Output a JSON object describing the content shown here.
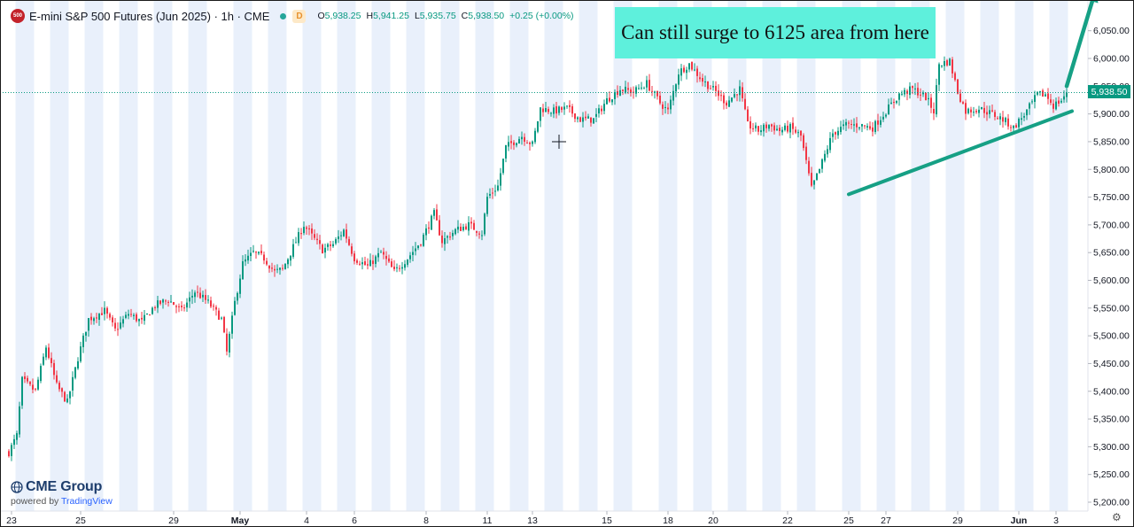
{
  "header": {
    "symbol_badge": "500",
    "title": "E-mini S&P 500 Futures (Jun 2025) · 1h · CME",
    "d_badge": "D",
    "open_label": "O",
    "open": "5,938.25",
    "high_label": "H",
    "high": "5,941.25",
    "low_label": "L",
    "low": "5,935.75",
    "close_label": "C",
    "close": "5,938.50",
    "change": "+0.25 (+0.00%)"
  },
  "annotation": {
    "text": "Can still surge to 6125 area from here"
  },
  "logo": {
    "main": "CME Group",
    "powered": "powered by",
    "brand": "TradingView"
  },
  "current_price_tag": "5,938.50",
  "colors": {
    "up": "#089981",
    "down": "#f23645",
    "trendline": "#16a085",
    "banner": "#5ef0dc",
    "session_shade": "#e9f0fb"
  },
  "chart_data": {
    "type": "candlestick",
    "title": "E-mini S&P 500 Futures (Jun 2025) · 1h · CME",
    "interval": "1h",
    "y_axis": {
      "min": 5200,
      "max": 6050,
      "ticks": [
        "5,200.00",
        "5,250.00",
        "5,300.00",
        "5,350.00",
        "5,400.00",
        "5,450.00",
        "5,500.00",
        "5,550.00",
        "5,600.00",
        "5,650.00",
        "5,700.00",
        "5,750.00",
        "5,800.00",
        "5,850.00",
        "5,900.00",
        "5,950.00",
        "6,000.00",
        "6,050.00"
      ]
    },
    "x_axis": {
      "labels": [
        {
          "text": "23",
          "idx": 1
        },
        {
          "text": "25",
          "idx": 27
        },
        {
          "text": "29",
          "idx": 62
        },
        {
          "text": "May",
          "idx": 87
        },
        {
          "text": "4",
          "idx": 112
        },
        {
          "text": "6",
          "idx": 130
        },
        {
          "text": "8",
          "idx": 157
        },
        {
          "text": "11",
          "idx": 180
        },
        {
          "text": "13",
          "idx": 197
        },
        {
          "text": "15",
          "idx": 225
        },
        {
          "text": "18",
          "idx": 248
        },
        {
          "text": "20",
          "idx": 265
        },
        {
          "text": "22",
          "idx": 293
        },
        {
          "text": "25",
          "idx": 316
        },
        {
          "text": "27",
          "idx": 330
        },
        {
          "text": "29",
          "idx": 357
        },
        {
          "text": "Jun",
          "idx": 380
        },
        {
          "text": "3",
          "idx": 394
        }
      ]
    },
    "session_bands": [
      [
        3,
        10
      ],
      [
        16,
        23
      ],
      [
        29,
        36
      ],
      [
        42,
        49
      ],
      [
        55,
        62
      ],
      [
        68,
        75
      ],
      [
        85,
        92
      ],
      [
        98,
        105
      ],
      [
        111,
        118
      ],
      [
        124,
        131
      ],
      [
        137,
        144
      ],
      [
        150,
        157
      ],
      [
        163,
        170
      ],
      [
        176,
        183
      ],
      [
        189,
        196
      ],
      [
        202,
        209
      ],
      [
        215,
        222
      ],
      [
        228,
        235
      ],
      [
        245,
        252
      ],
      [
        258,
        265
      ],
      [
        271,
        278
      ],
      [
        284,
        291
      ],
      [
        297,
        304
      ],
      [
        314,
        321
      ],
      [
        327,
        334
      ],
      [
        340,
        347
      ],
      [
        353,
        360
      ],
      [
        366,
        373
      ],
      [
        379,
        386
      ],
      [
        392,
        399
      ]
    ],
    "close_anchors": [
      [
        0,
        5290
      ],
      [
        3,
        5320
      ],
      [
        5,
        5420
      ],
      [
        10,
        5400
      ],
      [
        14,
        5480
      ],
      [
        18,
        5410
      ],
      [
        22,
        5380
      ],
      [
        26,
        5460
      ],
      [
        30,
        5530
      ],
      [
        36,
        5545
      ],
      [
        40,
        5510
      ],
      [
        45,
        5540
      ],
      [
        50,
        5525
      ],
      [
        55,
        5555
      ],
      [
        60,
        5565
      ],
      [
        65,
        5545
      ],
      [
        70,
        5580
      ],
      [
        75,
        5560
      ],
      [
        80,
        5530
      ],
      [
        82,
        5470
      ],
      [
        85,
        5560
      ],
      [
        88,
        5630
      ],
      [
        92,
        5650
      ],
      [
        96,
        5640
      ],
      [
        100,
        5615
      ],
      [
        103,
        5620
      ],
      [
        107,
        5660
      ],
      [
        111,
        5700
      ],
      [
        114,
        5680
      ],
      [
        118,
        5655
      ],
      [
        122,
        5665
      ],
      [
        126,
        5690
      ],
      [
        130,
        5640
      ],
      [
        135,
        5625
      ],
      [
        140,
        5650
      ],
      [
        145,
        5615
      ],
      [
        150,
        5640
      ],
      [
        155,
        5670
      ],
      [
        160,
        5720
      ],
      [
        163,
        5670
      ],
      [
        168,
        5690
      ],
      [
        173,
        5700
      ],
      [
        178,
        5685
      ],
      [
        180,
        5750
      ],
      [
        184,
        5770
      ],
      [
        187,
        5840
      ],
      [
        193,
        5860
      ],
      [
        197,
        5845
      ],
      [
        200,
        5910
      ],
      [
        205,
        5905
      ],
      [
        210,
        5910
      ],
      [
        215,
        5890
      ],
      [
        220,
        5890
      ],
      [
        225,
        5925
      ],
      [
        230,
        5945
      ],
      [
        235,
        5940
      ],
      [
        240,
        5955
      ],
      [
        245,
        5920
      ],
      [
        248,
        5905
      ],
      [
        252,
        5975
      ],
      [
        256,
        5990
      ],
      [
        261,
        5960
      ],
      [
        266,
        5940
      ],
      [
        270,
        5920
      ],
      [
        275,
        5945
      ],
      [
        278,
        5880
      ],
      [
        282,
        5870
      ],
      [
        286,
        5880
      ],
      [
        290,
        5870
      ],
      [
        294,
        5875
      ],
      [
        298,
        5860
      ],
      [
        302,
        5765
      ],
      [
        305,
        5800
      ],
      [
        310,
        5865
      ],
      [
        315,
        5880
      ],
      [
        320,
        5880
      ],
      [
        325,
        5875
      ],
      [
        330,
        5905
      ],
      [
        335,
        5935
      ],
      [
        340,
        5945
      ],
      [
        345,
        5930
      ],
      [
        348,
        5905
      ],
      [
        350,
        5990
      ],
      [
        354,
        5995
      ],
      [
        357,
        5940
      ],
      [
        360,
        5905
      ],
      [
        365,
        5910
      ],
      [
        370,
        5900
      ],
      [
        374,
        5890
      ],
      [
        378,
        5875
      ],
      [
        383,
        5905
      ],
      [
        387,
        5935
      ],
      [
        390,
        5935
      ],
      [
        393,
        5915
      ],
      [
        396,
        5925
      ],
      [
        398,
        5938.5
      ]
    ],
    "last_price": 5938.5,
    "trendline": {
      "from": {
        "idx": 316,
        "price": 5755
      },
      "to": {
        "idx": 400,
        "price": 5905
      }
    },
    "projection_arrow": {
      "from": {
        "idx": 398,
        "price": 5950
      },
      "to": {
        "idx": 409,
        "price": 6125
      }
    },
    "legend": "none",
    "grid": "session shading only"
  }
}
